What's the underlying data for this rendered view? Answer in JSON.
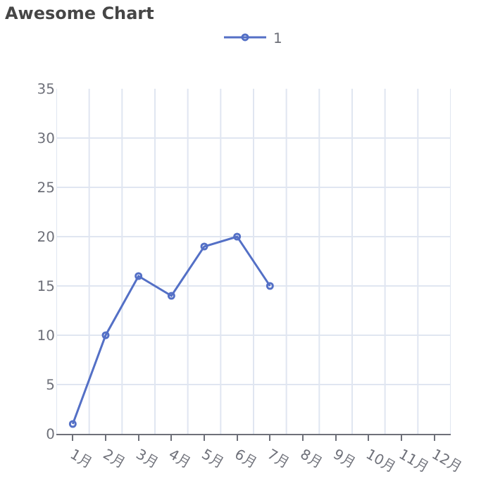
{
  "chart_data": {
    "type": "line",
    "title": "Awesome Chart",
    "categories": [
      "1月",
      "2月",
      "3月",
      "4月",
      "5月",
      "6月",
      "7月",
      "8月",
      "9月",
      "10月",
      "11月",
      "12月"
    ],
    "series": [
      {
        "name": "1",
        "color": "#5470c6",
        "values": [
          1,
          10,
          16,
          14,
          19,
          20,
          15,
          null,
          null,
          null,
          null,
          null
        ]
      }
    ],
    "ylim": [
      0,
      35
    ],
    "yticks": [
      0,
      5,
      10,
      15,
      20,
      25,
      30,
      35
    ],
    "grid": true,
    "legend": "top",
    "marker": "circle",
    "line_style": "solid"
  }
}
